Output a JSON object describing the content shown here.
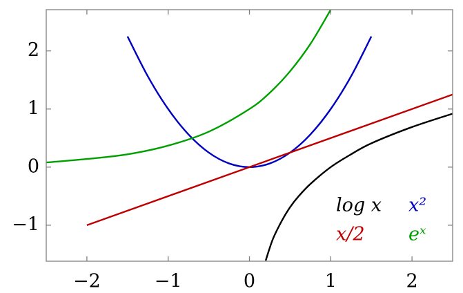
{
  "chart_data": {
    "type": "line",
    "xlim": [
      -2.5,
      2.5
    ],
    "ylim": [
      -1.62,
      2.71
    ],
    "xticks": [
      {
        "value": -2,
        "label": "−2"
      },
      {
        "value": -1,
        "label": "−1"
      },
      0,
      1,
      2
    ],
    "yticks": [
      {
        "value": -1,
        "label": "−1"
      },
      0,
      1,
      2
    ],
    "legend": "lower right",
    "series": [
      {
        "name": "log x",
        "color": "#000000",
        "x": [
          0.2,
          0.25,
          0.3,
          0.4,
          0.5,
          0.6,
          0.75,
          1,
          1.25,
          1.5,
          2,
          2.5
        ],
        "values": [
          -1.61,
          -1.39,
          -1.2,
          -0.92,
          -0.69,
          -0.51,
          -0.29,
          0,
          0.22,
          0.41,
          0.69,
          0.92
        ]
      },
      {
        "name": "x²",
        "color": "#0000c0",
        "x": [
          -1.5,
          -1.25,
          -1,
          -0.75,
          -0.5,
          -0.25,
          0,
          0.25,
          0.5,
          0.75,
          1,
          1.25,
          1.5
        ],
        "values": [
          2.25,
          1.5625,
          1,
          0.5625,
          0.25,
          0.0625,
          0,
          0.0625,
          0.25,
          0.5625,
          1,
          1.5625,
          2.25
        ]
      },
      {
        "name": "x/2",
        "color": "#c00000",
        "x": [
          -2,
          2.5
        ],
        "values": [
          -1,
          1.25
        ]
      },
      {
        "name": "eˣ",
        "color": "#00a000",
        "x": [
          -2.5,
          -2,
          -1.5,
          -1,
          -0.5,
          0,
          0.25,
          0.5,
          0.75,
          1
        ],
        "values": [
          0.08,
          0.14,
          0.22,
          0.37,
          0.61,
          1,
          1.28,
          1.65,
          2.12,
          2.71
        ]
      }
    ]
  }
}
